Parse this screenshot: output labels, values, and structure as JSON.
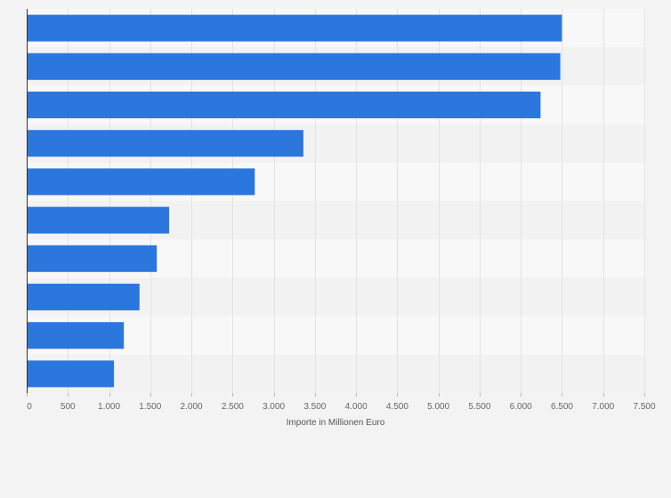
{
  "chart_data": {
    "type": "bar",
    "orientation": "horizontal",
    "title": "",
    "categories": [
      "",
      "",
      "",
      "",
      "",
      "",
      "",
      "",
      "",
      ""
    ],
    "values": [
      6500,
      6480,
      6240,
      3360,
      2770,
      1730,
      1580,
      1370,
      1180,
      1060
    ],
    "xlabel": "Importe in Millionen Euro",
    "ylabel": "",
    "xlim": [
      0,
      7500
    ],
    "xticks": [
      0,
      500,
      1000,
      1500,
      2000,
      2500,
      3000,
      3500,
      4000,
      4500,
      5000,
      5500,
      6000,
      6500,
      7000,
      7500
    ],
    "xtick_labels": [
      "0",
      "500",
      "1.000",
      "1.500",
      "2.000",
      "2.500",
      "3.000",
      "3.500",
      "4.000",
      "4.500",
      "5.000",
      "5.500",
      "6.000",
      "6.500",
      "7.000",
      "7.500"
    ],
    "grid": true,
    "legend": "none",
    "colors": {
      "bar": "#2c77dd",
      "band_light": "#f8f8f8",
      "band_dark": "#f2f2f2",
      "grid": "#e2e2e2",
      "axis": "#333333",
      "tick_text": "#666666"
    }
  }
}
